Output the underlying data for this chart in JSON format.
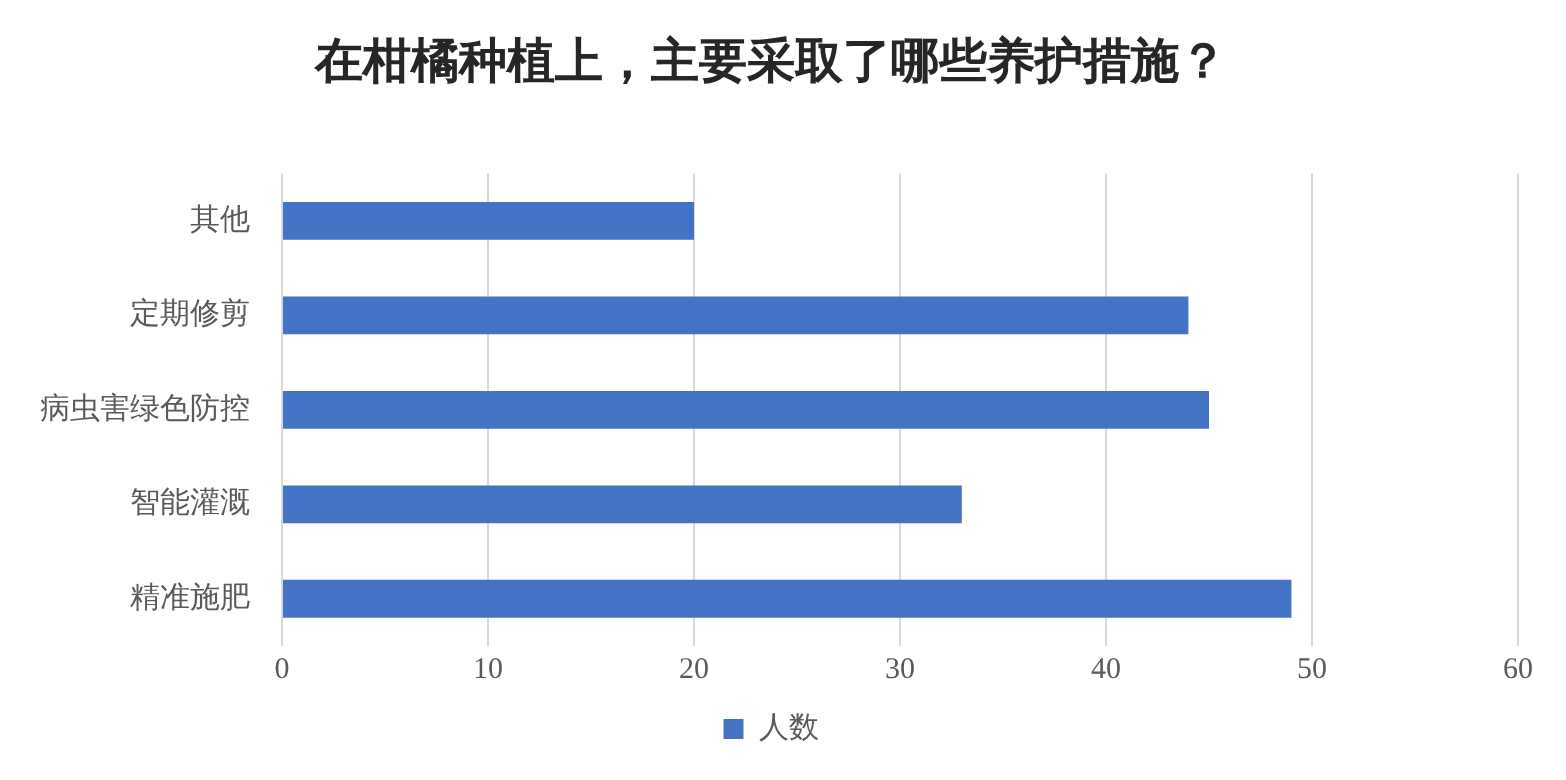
{
  "chart_data": {
    "type": "bar",
    "orientation": "horizontal",
    "title": "在柑橘种植上，主要采取了哪些养护措施？",
    "categories": [
      "其他",
      "定期修剪",
      "病虫害绿色防控",
      "智能灌溉",
      "精准施肥"
    ],
    "series": [
      {
        "name": "人数",
        "color": "#4472c4",
        "values": [
          20,
          44,
          45,
          33,
          49
        ]
      }
    ],
    "xlim": [
      0,
      60
    ],
    "xticks": [
      0,
      10,
      20,
      30,
      40,
      50,
      60
    ],
    "grid": "x",
    "legend": "bottom"
  }
}
